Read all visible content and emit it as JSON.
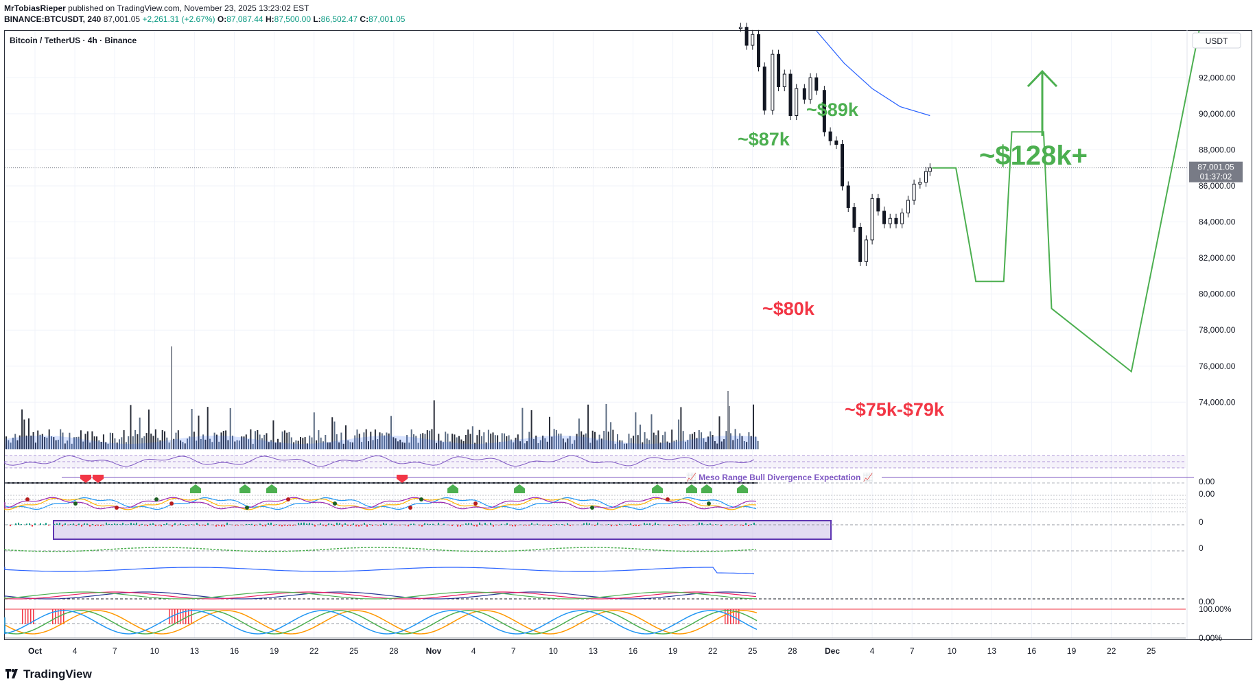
{
  "header": {
    "line1_author": "MrTobiasRieper",
    "line1_rest": "published on TradingView.com, November 23, 2025 13:23:02 EST",
    "symbol": "BINANCE:BTCUSDT, 240",
    "last": "87,001.05",
    "change": "+2,261.31 (+2.67%)",
    "o_label": "O:",
    "o_val": "87,087.44",
    "h_label": "H:",
    "h_val": "87,500.00",
    "l_label": "L:",
    "l_val": "86,502.47",
    "c_label": "C:",
    "c_val": "87,001.05"
  },
  "chart_data": {
    "type": "line",
    "title": "Bitcoin / TetherUS · 4h · Binance",
    "currency_label": "USDT",
    "ylim": [
      71500,
      94600
    ],
    "y_ticks": [
      "92,000.00",
      "90,000.00",
      "88,000.00",
      "86,000.00",
      "84,000.00",
      "82,000.00",
      "80,000.00",
      "78,000.00",
      "76,000.00",
      "74,000.00"
    ],
    "y_tick_values": [
      92000,
      90000,
      88000,
      86000,
      84000,
      82000,
      80000,
      78000,
      76000,
      74000
    ],
    "x_ticks": [
      "Oct",
      "4",
      "7",
      "10",
      "13",
      "16",
      "19",
      "22",
      "25",
      "28",
      "Nov",
      "4",
      "7",
      "10",
      "13",
      "16",
      "19",
      "22",
      "25",
      "28",
      "Dec",
      "4",
      "7",
      "10",
      "13",
      "16",
      "19",
      "22",
      "25"
    ],
    "current_price": {
      "value": 87001.05,
      "label": "87,001.05",
      "countdown": "01:37:02"
    },
    "price_series": {
      "name": "BTCUSDT 4h",
      "points": [
        [
          17.7,
          94800
        ],
        [
          17.85,
          93800
        ],
        [
          18.0,
          94400
        ],
        [
          18.15,
          92600
        ],
        [
          18.3,
          90200
        ],
        [
          18.5,
          93300
        ],
        [
          18.65,
          91500
        ],
        [
          18.8,
          92200
        ],
        [
          18.95,
          89900
        ],
        [
          19.1,
          91400
        ],
        [
          19.3,
          90800
        ],
        [
          19.45,
          92000
        ],
        [
          19.6,
          91300
        ],
        [
          19.8,
          89000
        ],
        [
          19.95,
          88500
        ],
        [
          20.1,
          88300
        ],
        [
          20.25,
          86000
        ],
        [
          20.4,
          84800
        ],
        [
          20.55,
          83700
        ],
        [
          20.7,
          81800
        ],
        [
          20.85,
          83000
        ],
        [
          21.0,
          85300
        ],
        [
          21.15,
          84600
        ],
        [
          21.3,
          83900
        ],
        [
          21.45,
          84200
        ],
        [
          21.6,
          83900
        ],
        [
          21.75,
          84500
        ],
        [
          21.9,
          85200
        ],
        [
          22.05,
          86100
        ],
        [
          22.2,
          86200
        ],
        [
          22.35,
          86800
        ],
        [
          22.45,
          87001
        ]
      ]
    },
    "ma_series": {
      "points": [
        [
          19.6,
          94600
        ],
        [
          20.3,
          92800
        ],
        [
          21.0,
          91400
        ],
        [
          21.7,
          90400
        ],
        [
          22.45,
          89900
        ]
      ]
    },
    "projection": {
      "points": [
        [
          22.5,
          87000
        ],
        [
          23.1,
          87000
        ],
        [
          23.6,
          80700
        ],
        [
          24.3,
          80700
        ],
        [
          24.5,
          89000
        ],
        [
          25.3,
          89000
        ],
        [
          25.5,
          79200
        ],
        [
          27.5,
          75700
        ],
        [
          29.2,
          94600
        ]
      ]
    },
    "annotations": [
      {
        "text": "~$87k",
        "color": "#4caf50"
      },
      {
        "text": "~$89k",
        "color": "#4caf50"
      },
      {
        "text": "~$80k",
        "color": "#f23645"
      },
      {
        "text": "~$75k-$79k",
        "color": "#f23645"
      },
      {
        "text": "~$128k+",
        "color": "#4caf50"
      }
    ],
    "indicator_label": "📈 Meso Range Bull Divergence Expectation 📈",
    "pane_labels": [
      "0.00",
      "0.00",
      "0",
      "0",
      "0.00",
      "100.00%",
      "0.00%"
    ]
  },
  "colors": {
    "up": "#089981",
    "down": "#f23645",
    "green": "#4caf50",
    "purple": "#7e57c2",
    "blue": "#2962ff"
  },
  "footer": {
    "brand": "TradingView"
  }
}
